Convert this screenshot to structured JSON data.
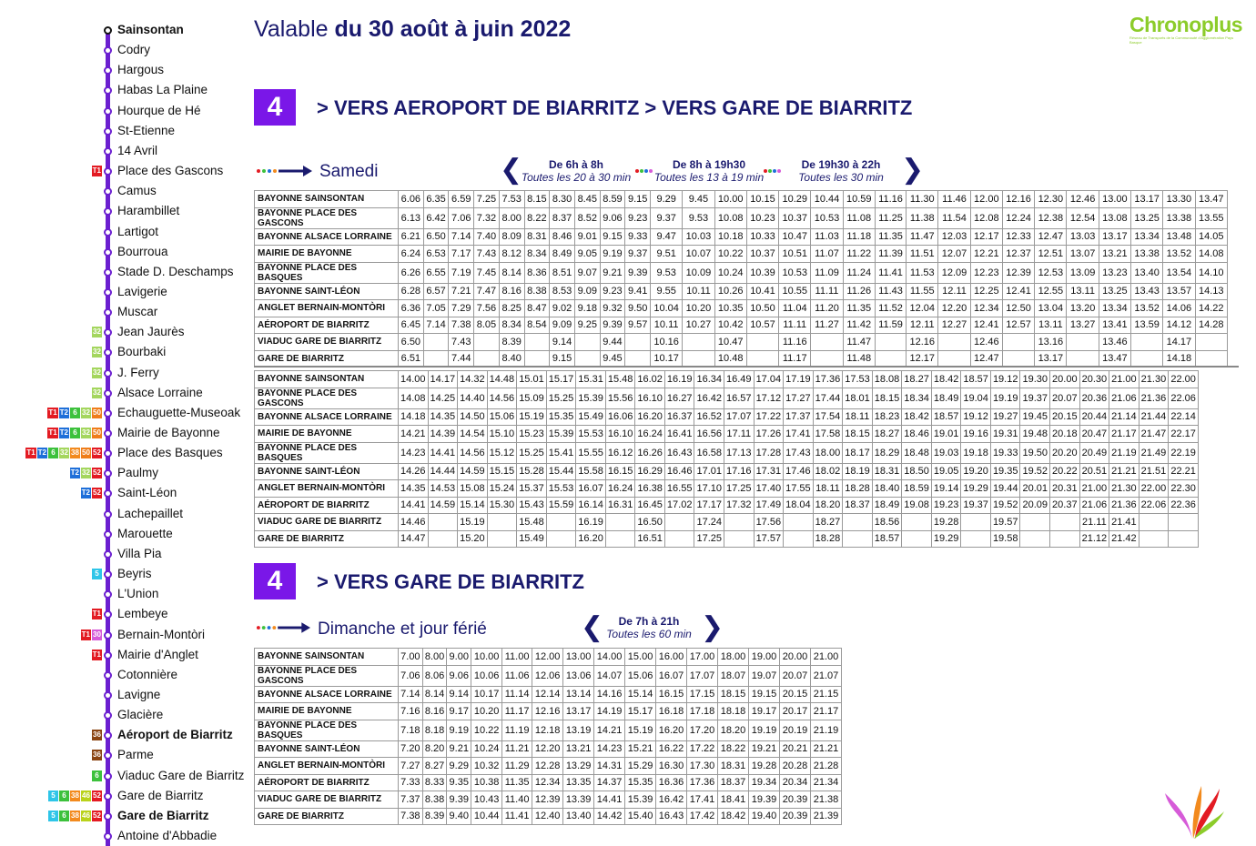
{
  "header": {
    "valid_prefix": "Valable",
    "valid_dates": "du 30 août à juin 2022",
    "logo_text": "Chronoplus",
    "logo_subtitle": "Réseau de Transports de la Communauté d'Agglomération Pays Basque"
  },
  "sidebar": {
    "stops": [
      {
        "name": "Sainsontan",
        "bold": true,
        "badges": []
      },
      {
        "name": "Codry",
        "bold": false,
        "badges": []
      },
      {
        "name": "Hargous",
        "bold": false,
        "badges": []
      },
      {
        "name": "Habas La Plaine",
        "bold": false,
        "badges": []
      },
      {
        "name": "Hourque de Hé",
        "bold": false,
        "badges": []
      },
      {
        "name": "St-Etienne",
        "bold": false,
        "badges": []
      },
      {
        "name": "14 Avril",
        "bold": false,
        "badges": []
      },
      {
        "name": "Place des Gascons",
        "bold": false,
        "badges": [
          "T1"
        ]
      },
      {
        "name": "Camus",
        "bold": false,
        "badges": []
      },
      {
        "name": "Harambillet",
        "bold": false,
        "badges": []
      },
      {
        "name": "Lartigot",
        "bold": false,
        "badges": []
      },
      {
        "name": "Bourroua",
        "bold": false,
        "badges": []
      },
      {
        "name": "Stade  D. Deschamps",
        "bold": false,
        "badges": []
      },
      {
        "name": "Lavigerie",
        "bold": false,
        "badges": []
      },
      {
        "name": "Muscar",
        "bold": false,
        "badges": []
      },
      {
        "name": "Jean Jaurès",
        "bold": false,
        "badges": [
          "32"
        ]
      },
      {
        "name": "Bourbaki",
        "bold": false,
        "badges": [
          "32"
        ]
      },
      {
        "name": "J. Ferry",
        "bold": false,
        "badges": [
          "32"
        ]
      },
      {
        "name": "Alsace Lorraine",
        "bold": false,
        "badges": [
          "32"
        ]
      },
      {
        "name": "Echauguette-Museoak",
        "bold": false,
        "badges": [
          "T1",
          "T2",
          "6",
          "32",
          "50"
        ]
      },
      {
        "name": "Mairie de Bayonne",
        "bold": false,
        "badges": [
          "T1",
          "T2",
          "6",
          "32",
          "50"
        ]
      },
      {
        "name": "Place des Basques",
        "bold": false,
        "badges": [
          "T1",
          "T2",
          "6",
          "32",
          "38",
          "50",
          "52"
        ]
      },
      {
        "name": "Paulmy",
        "bold": false,
        "badges": [
          "T2",
          "32",
          "52"
        ]
      },
      {
        "name": "Saint-Léon",
        "bold": false,
        "badges": [
          "T2",
          "52"
        ]
      },
      {
        "name": "Lachepaillet",
        "bold": false,
        "badges": []
      },
      {
        "name": "Marouette",
        "bold": false,
        "badges": []
      },
      {
        "name": "Villa Pia",
        "bold": false,
        "badges": []
      },
      {
        "name": "Beyris",
        "bold": false,
        "badges": [
          "5"
        ]
      },
      {
        "name": "L'Union",
        "bold": false,
        "badges": []
      },
      {
        "name": "Lembeye",
        "bold": false,
        "badges": [
          "T1"
        ]
      },
      {
        "name": "Bernain-Montòri",
        "bold": false,
        "badges": [
          "T1",
          "30"
        ]
      },
      {
        "name": "Mairie d'Anglet",
        "bold": false,
        "badges": [
          "T1"
        ]
      },
      {
        "name": "Cotonnière",
        "bold": false,
        "badges": []
      },
      {
        "name": "Lavigne",
        "bold": false,
        "badges": []
      },
      {
        "name": "Glacière",
        "bold": false,
        "badges": []
      },
      {
        "name": "Aéroport de Biarritz",
        "bold": true,
        "badges": [
          "36"
        ]
      },
      {
        "name": "Parme",
        "bold": false,
        "badges": [
          "36"
        ]
      },
      {
        "name": "Viaduc Gare de Biarritz",
        "bold": false,
        "badges": [
          "6"
        ]
      },
      {
        "name": "Gare de Biarritz",
        "bold": false,
        "badges": [
          "5",
          "6",
          "38",
          "46",
          "52"
        ]
      },
      {
        "name": "Gare de Biarritz",
        "bold": true,
        "badges": [
          "5",
          "6",
          "38",
          "46",
          "52"
        ]
      },
      {
        "name": "Antoine d'Abbadie",
        "bold": false,
        "badges": []
      }
    ]
  },
  "section1": {
    "line_number": "4",
    "direction": "> VERS AEROPORT DE BIARRITZ  > VERS GARE DE BIARRITZ",
    "day_label": "Samedi",
    "frequencies": [
      {
        "title": "De 6h à 8h",
        "subtitle": "Toutes les 20 à 30 min"
      },
      {
        "title": "De 8h à 19h30",
        "subtitle": "Toutes les 13 à 19 min"
      },
      {
        "title": "De 19h30 à 22h",
        "subtitle": "Toutes les 30 min"
      }
    ]
  },
  "stops_list": [
    "BAYONNE SAINSONTAN",
    "BAYONNE PLACE DES GASCONS",
    "BAYONNE ALSACE LORRAINE",
    "MAIRIE DE BAYONNE",
    "BAYONNE PLACE DES BASQUES",
    "BAYONNE SAINT-LÉON",
    "ANGLET BERNAIN-MONTÒRI",
    "AÉROPORT DE BIARRITZ",
    "VIADUC GARE DE BIARRITZ",
    "GARE DE BIARRITZ"
  ],
  "table1": [
    [
      "6.06",
      "6.35",
      "6.59",
      "7.25",
      "7.53",
      "8.15",
      "8.30",
      "8.45",
      "8.59",
      "9.15",
      "9.29",
      "9.45",
      "10.00",
      "10.15",
      "10.29",
      "10.44",
      "10.59",
      "11.16",
      "11.30",
      "11.46",
      "12.00",
      "12.16",
      "12.30",
      "12.46",
      "13.00",
      "13.17",
      "13.30",
      "13.47"
    ],
    [
      "6.13",
      "6.42",
      "7.06",
      "7.32",
      "8.00",
      "8.22",
      "8.37",
      "8.52",
      "9.06",
      "9.23",
      "9.37",
      "9.53",
      "10.08",
      "10.23",
      "10.37",
      "10.53",
      "11.08",
      "11.25",
      "11.38",
      "11.54",
      "12.08",
      "12.24",
      "12.38",
      "12.54",
      "13.08",
      "13.25",
      "13.38",
      "13.55"
    ],
    [
      "6.21",
      "6.50",
      "7.14",
      "7.40",
      "8.09",
      "8.31",
      "8.46",
      "9.01",
      "9.15",
      "9.33",
      "9.47",
      "10.03",
      "10.18",
      "10.33",
      "10.47",
      "11.03",
      "11.18",
      "11.35",
      "11.47",
      "12.03",
      "12.17",
      "12.33",
      "12.47",
      "13.03",
      "13.17",
      "13.34",
      "13.48",
      "14.05"
    ],
    [
      "6.24",
      "6.53",
      "7.17",
      "7.43",
      "8.12",
      "8.34",
      "8.49",
      "9.05",
      "9.19",
      "9.37",
      "9.51",
      "10.07",
      "10.22",
      "10.37",
      "10.51",
      "11.07",
      "11.22",
      "11.39",
      "11.51",
      "12.07",
      "12.21",
      "12.37",
      "12.51",
      "13.07",
      "13.21",
      "13.38",
      "13.52",
      "14.08"
    ],
    [
      "6.26",
      "6.55",
      "7.19",
      "7.45",
      "8.14",
      "8.36",
      "8.51",
      "9.07",
      "9.21",
      "9.39",
      "9.53",
      "10.09",
      "10.24",
      "10.39",
      "10.53",
      "11.09",
      "11.24",
      "11.41",
      "11.53",
      "12.09",
      "12.23",
      "12.39",
      "12.53",
      "13.09",
      "13.23",
      "13.40",
      "13.54",
      "14.10"
    ],
    [
      "6.28",
      "6.57",
      "7.21",
      "7.47",
      "8.16",
      "8.38",
      "8.53",
      "9.09",
      "9.23",
      "9.41",
      "9.55",
      "10.11",
      "10.26",
      "10.41",
      "10.55",
      "11.11",
      "11.26",
      "11.43",
      "11.55",
      "12.11",
      "12.25",
      "12.41",
      "12.55",
      "13.11",
      "13.25",
      "13.43",
      "13.57",
      "14.13"
    ],
    [
      "6.36",
      "7.05",
      "7.29",
      "7.56",
      "8.25",
      "8.47",
      "9.02",
      "9.18",
      "9.32",
      "9.50",
      "10.04",
      "10.20",
      "10.35",
      "10.50",
      "11.04",
      "11.20",
      "11.35",
      "11.52",
      "12.04",
      "12.20",
      "12.34",
      "12.50",
      "13.04",
      "13.20",
      "13.34",
      "13.52",
      "14.06",
      "14.22"
    ],
    [
      "6.45",
      "7.14",
      "7.38",
      "8.05",
      "8.34",
      "8.54",
      "9.09",
      "9.25",
      "9.39",
      "9.57",
      "10.11",
      "10.27",
      "10.42",
      "10.57",
      "11.11",
      "11.27",
      "11.42",
      "11.59",
      "12.11",
      "12.27",
      "12.41",
      "12.57",
      "13.11",
      "13.27",
      "13.41",
      "13.59",
      "14.12",
      "14.28"
    ],
    [
      "6.50",
      "",
      "7.43",
      "",
      "8.39",
      "",
      "9.14",
      "",
      "9.44",
      "",
      "10.16",
      "",
      "10.47",
      "",
      "11.16",
      "",
      "11.47",
      "",
      "12.16",
      "",
      "12.46",
      "",
      "13.16",
      "",
      "13.46",
      "",
      "14.17",
      ""
    ],
    [
      "6.51",
      "",
      "7.44",
      "",
      "8.40",
      "",
      "9.15",
      "",
      "9.45",
      "",
      "10.17",
      "",
      "10.48",
      "",
      "11.17",
      "",
      "11.48",
      "",
      "12.17",
      "",
      "12.47",
      "",
      "13.17",
      "",
      "13.47",
      "",
      "14.18",
      ""
    ]
  ],
  "table2": [
    [
      "14.00",
      "14.17",
      "14.32",
      "14.48",
      "15.01",
      "15.17",
      "15.31",
      "15.48",
      "16.02",
      "16.19",
      "16.34",
      "16.49",
      "17.04",
      "17.19",
      "17.36",
      "17.53",
      "18.08",
      "18.27",
      "18.42",
      "18.57",
      "19.12",
      "19.30",
      "20.00",
      "20.30",
      "21.00",
      "21.30",
      "22.00"
    ],
    [
      "14.08",
      "14.25",
      "14.40",
      "14.56",
      "15.09",
      "15.25",
      "15.39",
      "15.56",
      "16.10",
      "16.27",
      "16.42",
      "16.57",
      "17.12",
      "17.27",
      "17.44",
      "18.01",
      "18.15",
      "18.34",
      "18.49",
      "19.04",
      "19.19",
      "19.37",
      "20.07",
      "20.36",
      "21.06",
      "21.36",
      "22.06"
    ],
    [
      "14.18",
      "14.35",
      "14.50",
      "15.06",
      "15.19",
      "15.35",
      "15.49",
      "16.06",
      "16.20",
      "16.37",
      "16.52",
      "17.07",
      "17.22",
      "17.37",
      "17.54",
      "18.11",
      "18.23",
      "18.42",
      "18.57",
      "19.12",
      "19.27",
      "19.45",
      "20.15",
      "20.44",
      "21.14",
      "21.44",
      "22.14"
    ],
    [
      "14.21",
      "14.39",
      "14.54",
      "15.10",
      "15.23",
      "15.39",
      "15.53",
      "16.10",
      "16.24",
      "16.41",
      "16.56",
      "17.11",
      "17.26",
      "17.41",
      "17.58",
      "18.15",
      "18.27",
      "18.46",
      "19.01",
      "19.16",
      "19.31",
      "19.48",
      "20.18",
      "20.47",
      "21.17",
      "21.47",
      "22.17"
    ],
    [
      "14.23",
      "14.41",
      "14.56",
      "15.12",
      "15.25",
      "15.41",
      "15.55",
      "16.12",
      "16.26",
      "16.43",
      "16.58",
      "17.13",
      "17.28",
      "17.43",
      "18.00",
      "18.17",
      "18.29",
      "18.48",
      "19.03",
      "19.18",
      "19.33",
      "19.50",
      "20.20",
      "20.49",
      "21.19",
      "21.49",
      "22.19"
    ],
    [
      "14.26",
      "14.44",
      "14.59",
      "15.15",
      "15.28",
      "15.44",
      "15.58",
      "16.15",
      "16.29",
      "16.46",
      "17.01",
      "17.16",
      "17.31",
      "17.46",
      "18.02",
      "18.19",
      "18.31",
      "18.50",
      "19.05",
      "19.20",
      "19.35",
      "19.52",
      "20.22",
      "20.51",
      "21.21",
      "21.51",
      "22.21"
    ],
    [
      "14.35",
      "14.53",
      "15.08",
      "15.24",
      "15.37",
      "15.53",
      "16.07",
      "16.24",
      "16.38",
      "16.55",
      "17.10",
      "17.25",
      "17.40",
      "17.55",
      "18.11",
      "18.28",
      "18.40",
      "18.59",
      "19.14",
      "19.29",
      "19.44",
      "20.01",
      "20.31",
      "21.00",
      "21.30",
      "22.00",
      "22.30"
    ],
    [
      "14.41",
      "14.59",
      "15.14",
      "15.30",
      "15.43",
      "15.59",
      "16.14",
      "16.31",
      "16.45",
      "17.02",
      "17.17",
      "17.32",
      "17.49",
      "18.04",
      "18.20",
      "18.37",
      "18.49",
      "19.08",
      "19.23",
      "19.37",
      "19.52",
      "20.09",
      "20.37",
      "21.06",
      "21.36",
      "22.06",
      "22.36"
    ],
    [
      "14.46",
      "",
      "15.19",
      "",
      "15.48",
      "",
      "16.19",
      "",
      "16.50",
      "",
      "17.24",
      "",
      "17.56",
      "",
      "18.27",
      "",
      "18.56",
      "",
      "19.28",
      "",
      "19.57",
      "",
      "",
      "21.11",
      "21.41",
      "",
      ""
    ],
    [
      "14.47",
      "",
      "15.20",
      "",
      "15.49",
      "",
      "16.20",
      "",
      "16.51",
      "",
      "17.25",
      "",
      "17.57",
      "",
      "18.28",
      "",
      "18.57",
      "",
      "19.29",
      "",
      "19.58",
      "",
      "",
      "21.12",
      "21.42",
      "",
      ""
    ]
  ],
  "section2": {
    "line_number": "4",
    "direction": "> VERS GARE DE BIARRITZ",
    "day_label": "Dimanche et jour férié",
    "frequencies": [
      {
        "title": "De 7h à 21h",
        "subtitle": "Toutes les 60 min"
      }
    ]
  },
  "table3": [
    [
      "7.00",
      "8.00",
      "9.00",
      "10.00",
      "11.00",
      "12.00",
      "13.00",
      "14.00",
      "15.00",
      "16.00",
      "17.00",
      "18.00",
      "19.00",
      "20.00",
      "21.00"
    ],
    [
      "7.06",
      "8.06",
      "9.06",
      "10.06",
      "11.06",
      "12.06",
      "13.06",
      "14.07",
      "15.06",
      "16.07",
      "17.07",
      "18.07",
      "19.07",
      "20.07",
      "21.07"
    ],
    [
      "7.14",
      "8.14",
      "9.14",
      "10.17",
      "11.14",
      "12.14",
      "13.14",
      "14.16",
      "15.14",
      "16.15",
      "17.15",
      "18.15",
      "19.15",
      "20.15",
      "21.15"
    ],
    [
      "7.16",
      "8.16",
      "9.17",
      "10.20",
      "11.17",
      "12.16",
      "13.17",
      "14.19",
      "15.17",
      "16.18",
      "17.18",
      "18.18",
      "19.17",
      "20.17",
      "21.17"
    ],
    [
      "7.18",
      "8.18",
      "9.19",
      "10.22",
      "11.19",
      "12.18",
      "13.19",
      "14.21",
      "15.19",
      "16.20",
      "17.20",
      "18.20",
      "19.19",
      "20.19",
      "21.19"
    ],
    [
      "7.20",
      "8.20",
      "9.21",
      "10.24",
      "11.21",
      "12.20",
      "13.21",
      "14.23",
      "15.21",
      "16.22",
      "17.22",
      "18.22",
      "19.21",
      "20.21",
      "21.21"
    ],
    [
      "7.27",
      "8.27",
      "9.29",
      "10.32",
      "11.29",
      "12.28",
      "13.29",
      "14.31",
      "15.29",
      "16.30",
      "17.30",
      "18.31",
      "19.28",
      "20.28",
      "21.28"
    ],
    [
      "7.33",
      "8.33",
      "9.35",
      "10.38",
      "11.35",
      "12.34",
      "13.35",
      "14.37",
      "15.35",
      "16.36",
      "17.36",
      "18.37",
      "19.34",
      "20.34",
      "21.34"
    ],
    [
      "7.37",
      "8.38",
      "9.39",
      "10.43",
      "11.40",
      "12.39",
      "13.39",
      "14.41",
      "15.39",
      "16.42",
      "17.41",
      "18.41",
      "19.39",
      "20.39",
      "21.38"
    ],
    [
      "7.38",
      "8.39",
      "9.40",
      "10.44",
      "11.41",
      "12.40",
      "13.40",
      "14.42",
      "15.40",
      "16.43",
      "17.42",
      "18.42",
      "19.40",
      "20.39",
      "21.39"
    ]
  ],
  "colors": {
    "line_purple": "#7a17e8",
    "route_line": "#6b1fd0",
    "title_navy": "#1a1a6e",
    "logo_green": "#8ccc2a"
  }
}
